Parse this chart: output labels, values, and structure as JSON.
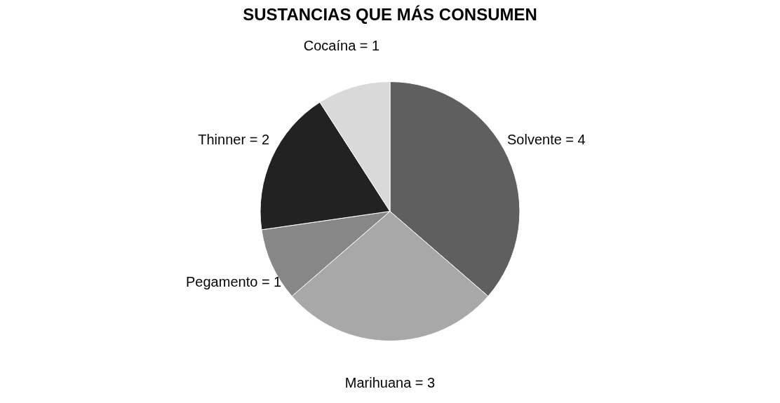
{
  "chart_data": {
    "type": "pie",
    "title": "SUSTANCIAS QUE MÁS CONSUMEN",
    "categories": [
      "Solvente = 4",
      "Marihuana = 3",
      "Pegamento = 1",
      "Thinner = 2",
      "Cocaína = 1"
    ],
    "values": [
      4,
      3,
      1,
      2,
      1
    ],
    "colors": [
      "#5f5f5f",
      "#a8a8a8",
      "#878787",
      "#222222",
      "#d9d9d9"
    ],
    "legend": false
  }
}
